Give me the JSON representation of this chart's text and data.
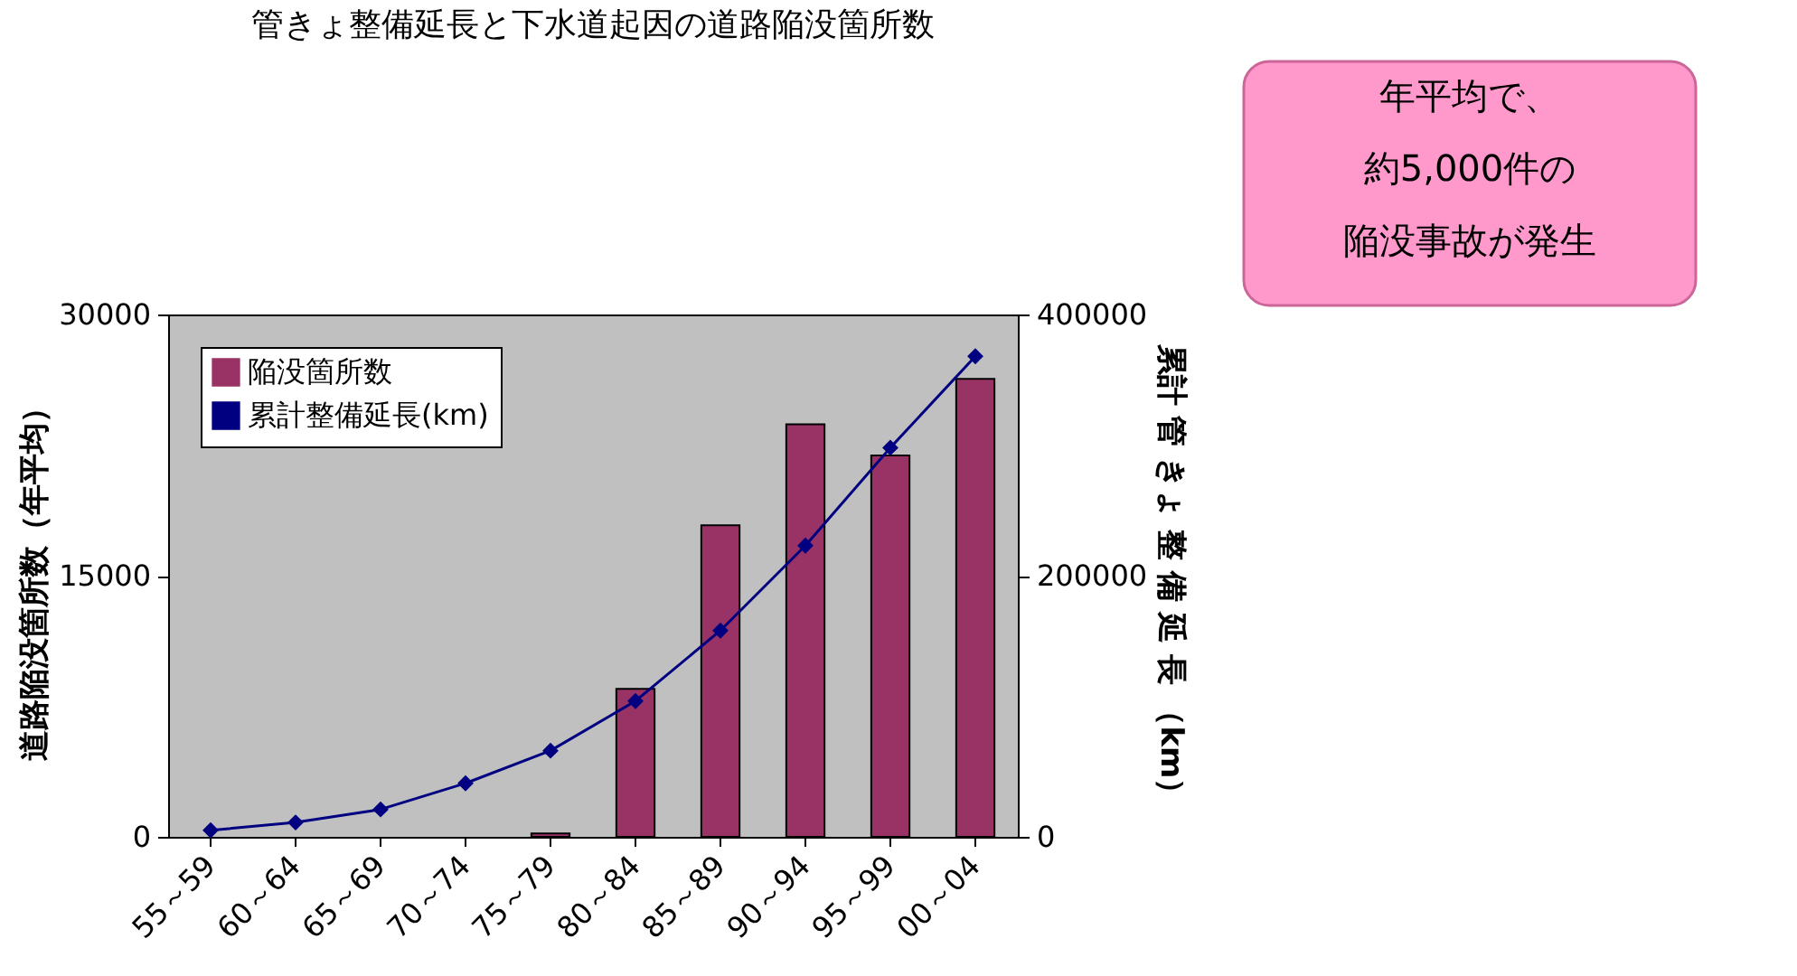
{
  "chart_data": {
    "type": "bar",
    "title": "管きょ整備延長と下水道起因の道路陥没箇所数",
    "categories": [
      "55～59",
      "60～64",
      "65～69",
      "70～74",
      "75～79",
      "80～84",
      "85～89",
      "90～94",
      "95～99",
      "00～04"
    ],
    "series": [
      {
        "name": "陥没箇所数",
        "color": "#993366",
        "values": [
          null,
          null,
          null,
          null,
          200,
          8500,
          17900,
          23700,
          21900,
          26300
        ]
      },
      {
        "name": "累計整備延長(km)",
        "type": "line",
        "axis": "y2",
        "color": "#000080",
        "values": [
          5000,
          11000,
          21000,
          41000,
          66000,
          104000,
          158000,
          223000,
          298000,
          368000
        ]
      }
    ],
    "ylabel": "道路陥没箇所数（年平均）",
    "y2label": "累計 管 きょ 整 備 延 長 （km）",
    "ylim": [
      0,
      30000
    ],
    "yticks": [
      0,
      15000,
      30000
    ],
    "y2lim": [
      0,
      400000
    ],
    "y2ticks": [
      0,
      200000,
      400000
    ],
    "marker": "diamond",
    "legend": "top left",
    "grid": false,
    "annotations": [
      "年平均で、",
      "約5,000件の",
      "陥没事故が発生"
    ]
  }
}
